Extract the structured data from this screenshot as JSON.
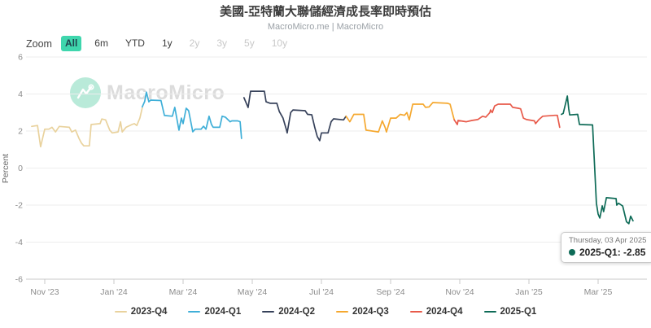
{
  "header": {
    "title": "美國-亞特蘭大聯儲經濟成長率即時預估",
    "subtitle": "MacroMicro.me | MacroMicro"
  },
  "toolbar": {
    "zoom_label": "Zoom",
    "buttons": [
      {
        "label": "All",
        "state": "active"
      },
      {
        "label": "6m",
        "state": "normal"
      },
      {
        "label": "YTD",
        "state": "normal"
      },
      {
        "label": "1y",
        "state": "normal"
      },
      {
        "label": "2y",
        "state": "disabled"
      },
      {
        "label": "3y",
        "state": "disabled"
      },
      {
        "label": "5y",
        "state": "disabled"
      },
      {
        "label": "10y",
        "state": "disabled"
      }
    ],
    "active_color": "#3fd6ad"
  },
  "watermark": {
    "icon": "macromicro-logo",
    "text": "MacroMicro"
  },
  "tooltip": {
    "date": "Thursday, 03 Apr 2025",
    "series": "2025-Q1",
    "value": "-2.85",
    "text": "2025-Q1: -2.85",
    "dot_color": "#0e6b57"
  },
  "chart_data": {
    "type": "line",
    "title": "美國-亞特蘭大聯儲經濟成長率即時預估",
    "xlabel": "",
    "ylabel": "Percent",
    "ylim": [
      -6,
      6
    ],
    "y_ticks": [
      6,
      4,
      2,
      0,
      -2,
      -4,
      -6
    ],
    "x_unit": "months since Nov 2023",
    "x_ticks": [
      {
        "month": 0,
        "label": "Nov '23"
      },
      {
        "month": 2,
        "label": "Jan '24"
      },
      {
        "month": 4,
        "label": "Mar '24"
      },
      {
        "month": 6,
        "label": "May '24"
      },
      {
        "month": 8,
        "label": "Jul '24"
      },
      {
        "month": 10,
        "label": "Sep '24"
      },
      {
        "month": 12,
        "label": "Nov '24"
      },
      {
        "month": 14,
        "label": "Jan '25"
      },
      {
        "month": 16,
        "label": "Mar '25"
      }
    ],
    "grid": "horizontal",
    "legend_position": "bottom",
    "series": [
      {
        "name": "2023-Q4",
        "color": "#e9d29d",
        "points": [
          [
            -0.38,
            2.25
          ],
          [
            -0.21,
            2.3
          ],
          [
            -0.12,
            1.15
          ],
          [
            0,
            2.1
          ],
          [
            0.12,
            2.1
          ],
          [
            0.21,
            2.2
          ],
          [
            0.31,
            1.95
          ],
          [
            0.42,
            2.25
          ],
          [
            0.71,
            2.2
          ],
          [
            0.78,
            1.95
          ],
          [
            0.89,
            2.05
          ],
          [
            0.99,
            1.6
          ],
          [
            1.06,
            1.35
          ],
          [
            1.13,
            1.2
          ],
          [
            1.29,
            1.2
          ],
          [
            1.34,
            2.35
          ],
          [
            1.6,
            2.4
          ],
          [
            1.65,
            2.65
          ],
          [
            1.76,
            2.6
          ],
          [
            1.88,
            2.05
          ],
          [
            1.95,
            1.9
          ],
          [
            2.12,
            1.95
          ],
          [
            2.19,
            2.5
          ],
          [
            2.24,
            1.95
          ],
          [
            2.35,
            2.2
          ],
          [
            2.52,
            2.35
          ],
          [
            2.59,
            2.4
          ],
          [
            2.66,
            2.3
          ],
          [
            2.75,
            2.7
          ],
          [
            2.82,
            3.25
          ]
        ]
      },
      {
        "name": "2024-Q1",
        "color": "#3fafd8",
        "points": [
          [
            2.82,
            3.3
          ],
          [
            2.89,
            3.6
          ],
          [
            2.94,
            4.1
          ],
          [
            3.01,
            3.58
          ],
          [
            3.06,
            3.67
          ],
          [
            3.36,
            3.65
          ],
          [
            3.46,
            2.84
          ],
          [
            3.69,
            2.8
          ],
          [
            3.76,
            3.28
          ],
          [
            3.88,
            2.05
          ],
          [
            3.95,
            2.7
          ],
          [
            4.0,
            2.4
          ],
          [
            4.09,
            3.23
          ],
          [
            4.16,
            3.1
          ],
          [
            4.28,
            1.96
          ],
          [
            4.35,
            2.1
          ],
          [
            4.52,
            2.1
          ],
          [
            4.59,
            2.26
          ],
          [
            4.66,
            2.1
          ],
          [
            4.75,
            2.8
          ],
          [
            4.82,
            2.35
          ],
          [
            4.87,
            2.2
          ],
          [
            5.06,
            2.2
          ],
          [
            5.13,
            2.8
          ],
          [
            5.22,
            2.75
          ],
          [
            5.36,
            2.5
          ],
          [
            5.41,
            2.55
          ],
          [
            5.58,
            2.55
          ],
          [
            5.65,
            2.5
          ],
          [
            5.69,
            1.6
          ]
        ]
      },
      {
        "name": "2024-Q2",
        "color": "#36415a",
        "points": [
          [
            5.76,
            3.8
          ],
          [
            5.88,
            3.27
          ],
          [
            5.95,
            4.15
          ],
          [
            6.35,
            4.15
          ],
          [
            6.4,
            3.58
          ],
          [
            6.52,
            3.5
          ],
          [
            6.71,
            3.5
          ],
          [
            6.78,
            3.06
          ],
          [
            6.89,
            2.7
          ],
          [
            6.99,
            2.05
          ],
          [
            7.01,
            1.9
          ],
          [
            7.11,
            3.0
          ],
          [
            7.18,
            3.14
          ],
          [
            7.53,
            3.1
          ],
          [
            7.6,
            2.9
          ],
          [
            7.72,
            2.88
          ],
          [
            7.81,
            2.18
          ],
          [
            7.88,
            1.7
          ],
          [
            7.95,
            1.48
          ],
          [
            8.0,
            1.9
          ],
          [
            8.19,
            1.9
          ],
          [
            8.28,
            2.5
          ],
          [
            8.35,
            2.66
          ],
          [
            8.64,
            2.6
          ],
          [
            8.71,
            2.8
          ]
        ]
      },
      {
        "name": "2024-Q3",
        "color": "#f5a82f",
        "points": [
          [
            8.71,
            2.8
          ],
          [
            8.82,
            2.5
          ],
          [
            8.94,
            2.9
          ],
          [
            9.22,
            2.9
          ],
          [
            9.29,
            2.05
          ],
          [
            9.65,
            1.95
          ],
          [
            9.76,
            2.55
          ],
          [
            9.84,
            2.2
          ],
          [
            9.88,
            1.95
          ],
          [
            10.0,
            2.7
          ],
          [
            10.16,
            2.7
          ],
          [
            10.28,
            2.9
          ],
          [
            10.4,
            2.85
          ],
          [
            10.47,
            3.0
          ],
          [
            10.54,
            2.6
          ],
          [
            10.64,
            3.45
          ],
          [
            10.94,
            3.45
          ],
          [
            11.01,
            3.28
          ],
          [
            11.11,
            3.3
          ],
          [
            11.22,
            3.54
          ],
          [
            11.65,
            3.5
          ],
          [
            11.72,
            3.45
          ],
          [
            11.84,
            2.6
          ]
        ]
      },
      {
        "name": "2024-Q4",
        "color": "#e85a4a",
        "points": [
          [
            11.84,
            2.6
          ],
          [
            11.93,
            2.35
          ],
          [
            11.95,
            2.57
          ],
          [
            12.19,
            2.5
          ],
          [
            12.35,
            2.57
          ],
          [
            12.52,
            2.62
          ],
          [
            12.66,
            2.8
          ],
          [
            12.75,
            2.75
          ],
          [
            12.87,
            3.0
          ],
          [
            12.89,
            3.14
          ],
          [
            12.94,
            3.0
          ],
          [
            13.01,
            3.36
          ],
          [
            13.11,
            3.45
          ],
          [
            13.46,
            3.45
          ],
          [
            13.53,
            3.28
          ],
          [
            13.69,
            3.23
          ],
          [
            13.76,
            3.2
          ],
          [
            13.84,
            2.7
          ],
          [
            13.93,
            2.62
          ],
          [
            14.16,
            2.55
          ],
          [
            14.19,
            2.4
          ],
          [
            14.28,
            2.6
          ],
          [
            14.4,
            2.8
          ],
          [
            14.75,
            2.85
          ],
          [
            14.82,
            2.85
          ],
          [
            14.89,
            2.2
          ]
        ]
      },
      {
        "name": "2025-Q1",
        "color": "#0e6b57",
        "points": [
          [
            14.94,
            2.9
          ],
          [
            14.99,
            2.95
          ],
          [
            15.06,
            3.5
          ],
          [
            15.11,
            3.89
          ],
          [
            15.15,
            3.2
          ],
          [
            15.18,
            2.87
          ],
          [
            15.41,
            2.9
          ],
          [
            15.46,
            2.35
          ],
          [
            15.84,
            2.33
          ],
          [
            15.95,
            -1.9
          ],
          [
            16.0,
            -2.48
          ],
          [
            16.05,
            -2.7
          ],
          [
            16.12,
            -2.04
          ],
          [
            16.16,
            -2.35
          ],
          [
            16.24,
            -1.6
          ],
          [
            16.52,
            -1.65
          ],
          [
            16.54,
            -2.0
          ],
          [
            16.59,
            -1.9
          ],
          [
            16.71,
            -2.05
          ],
          [
            16.82,
            -2.9
          ],
          [
            16.89,
            -3.0
          ],
          [
            16.94,
            -2.6
          ],
          [
            17.01,
            -2.85
          ]
        ]
      }
    ]
  }
}
